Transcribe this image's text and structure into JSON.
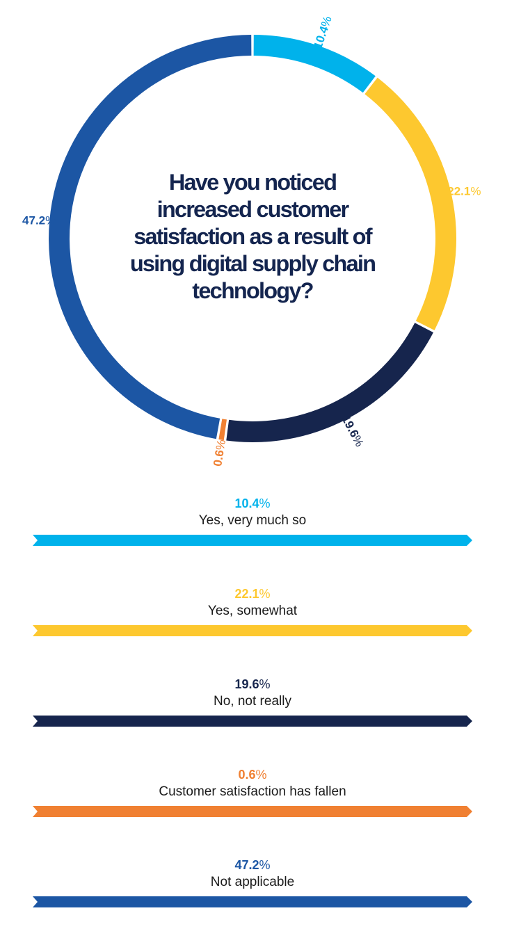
{
  "chart_data": {
    "type": "pie",
    "title": "Have you noticed increased customer satisfaction as a result of using digital supply chain technology?",
    "categories": [
      "Yes, very much so",
      "Yes, somewhat",
      "No, not really",
      "Customer satisfaction has fallen",
      "Not applicable"
    ],
    "values": [
      10.4,
      22.1,
      19.6,
      0.6,
      47.2
    ],
    "value_labels": [
      "10.4",
      "22.1",
      "19.6",
      "0.6",
      "47.2"
    ],
    "unit": "%",
    "colors": [
      "#00b2eb",
      "#fdc82f",
      "#16254d",
      "#f08032",
      "#1c56a4"
    ],
    "legend_placement": "bottom"
  }
}
